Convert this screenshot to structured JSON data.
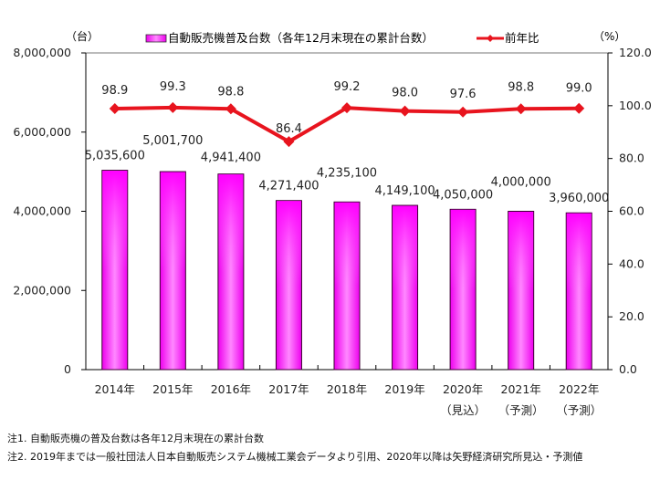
{
  "chart_data": {
    "type": "bar+line",
    "categories": [
      "2014年",
      "2015年",
      "2016年",
      "2017年",
      "2018年",
      "2019年",
      "2020年",
      "2021年",
      "2022年"
    ],
    "category_sublabels": [
      "",
      "",
      "",
      "",
      "",
      "",
      "（見込）",
      "（予測）",
      "（予測）"
    ],
    "series": [
      {
        "name": "自動販売機普及台数（各年12月末現在の累計台数）",
        "type": "bar",
        "axis": "left",
        "values": [
          5035600,
          5001700,
          4941400,
          4271400,
          4235100,
          4149100,
          4050000,
          4000000,
          3960000
        ],
        "labels": [
          "5,035,600",
          "5,001,700",
          "4,941,400",
          "4,271,400",
          "4,235,100",
          "4,149,100",
          "4,050,000",
          "4,000,000",
          "3,960,000"
        ],
        "color": "#ff00ff"
      },
      {
        "name": "前年比",
        "type": "line",
        "axis": "right",
        "values": [
          98.9,
          99.3,
          98.8,
          86.4,
          99.2,
          98.0,
          97.6,
          98.8,
          99.0
        ],
        "labels": [
          "98.9",
          "99.3",
          "98.8",
          "86.4",
          "99.2",
          "98.0",
          "97.6",
          "98.8",
          "99.0"
        ],
        "color": "#e8141e"
      }
    ],
    "left_axis": {
      "unit_label": "（台）",
      "range": [
        0,
        8000000
      ],
      "ticks": [
        0,
        2000000,
        4000000,
        6000000,
        8000000
      ],
      "tick_labels": [
        "0",
        "2,000,000",
        "4,000,000",
        "6,000,000",
        "8,000,000"
      ]
    },
    "right_axis": {
      "unit_label": "（%）",
      "range": [
        0,
        120
      ],
      "ticks": [
        0,
        20,
        40,
        60,
        80,
        100,
        120
      ],
      "tick_labels": [
        "0.0",
        "20.0",
        "40.0",
        "60.0",
        "80.0",
        "100.0",
        "120.0"
      ]
    },
    "legend": {
      "placement": "top",
      "entries": [
        "自動販売機普及台数（各年12月末現在の累計台数）",
        "前年比"
      ]
    },
    "grid": false
  },
  "notes": [
    "注1. 自動販売機の普及台数は各年12月末現在の累計台数",
    "注2. 2019年までは一般社団法人日本自動販売システム機械工業会データより引用、2020年以降は矢野経済研究所見込・予測値"
  ]
}
